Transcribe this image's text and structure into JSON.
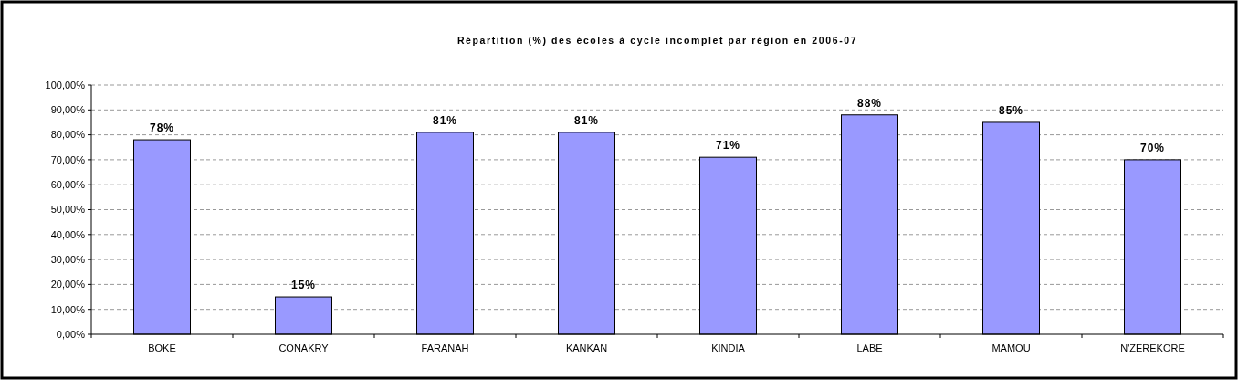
{
  "chart_data": {
    "type": "bar",
    "title": "Répartition (%) des écoles à cycle incomplet par région en 2006-07",
    "categories": [
      "BOKE",
      "CONAKRY",
      "FARANAH",
      "KANKAN",
      "KINDIA",
      "LABE",
      "MAMOU",
      "N'ZEREKORE"
    ],
    "values": [
      78,
      15,
      81,
      81,
      71,
      88,
      85,
      70
    ],
    "value_labels": [
      "78%",
      "15%",
      "81%",
      "81%",
      "71%",
      "88%",
      "85%",
      "70%"
    ],
    "color": "#9999ff",
    "ylim": [
      0,
      100
    ],
    "yticks": [
      {
        "value": 0,
        "label": "0,00%"
      },
      {
        "value": 10,
        "label": "10,00%"
      },
      {
        "value": 20,
        "label": "20,00%"
      },
      {
        "value": 30,
        "label": "30,00%"
      },
      {
        "value": 40,
        "label": "40,00%"
      },
      {
        "value": 50,
        "label": "50,00%"
      },
      {
        "value": 60,
        "label": "60,00%"
      },
      {
        "value": 70,
        "label": "70,00%"
      },
      {
        "value": 80,
        "label": "80,00%"
      },
      {
        "value": 90,
        "label": "90,00%"
      },
      {
        "value": 100,
        "label": "100,00%"
      }
    ],
    "grid": "y"
  }
}
